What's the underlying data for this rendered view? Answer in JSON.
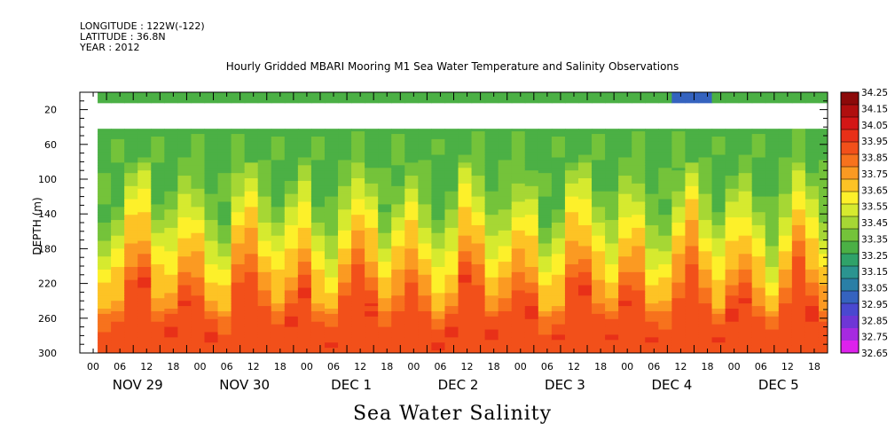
{
  "header": {
    "longitude": "LONGITUDE : 122W(-122)",
    "latitude": "LATITUDE : 36.8N",
    "year": "YEAR : 2012"
  },
  "chart_data": {
    "type": "heatmap",
    "title": "Hourly Gridded MBARI Mooring M1 Sea Water Temperature and Salinity Observations",
    "xlabel": "Sea Water Salinity",
    "ylabel": "DEPTH (m)",
    "y_ticks": [
      20,
      60,
      100,
      140,
      180,
      220,
      260,
      300
    ],
    "ylim": [
      0,
      300
    ],
    "y_inverted": true,
    "x_hour_ticks": [
      "00",
      "06",
      "12",
      "18",
      "00",
      "06",
      "12",
      "18",
      "00",
      "06",
      "12",
      "18",
      "00",
      "06",
      "12",
      "18",
      "00",
      "06",
      "12",
      "18",
      "00",
      "06",
      "12",
      "18",
      "00",
      "06",
      "12",
      "18"
    ],
    "x_day_labels": [
      "NOV 29",
      "NOV 30",
      "DEC  1",
      "DEC  2",
      "DEC  3",
      "DEC  4",
      "DEC  5"
    ],
    "days_shown": 7,
    "data_start_hour": 4,
    "missing_depth_range": [
      10,
      40
    ],
    "colorbar": {
      "levels": [
        34.25,
        34.15,
        34.05,
        33.95,
        33.85,
        33.75,
        33.65,
        33.55,
        33.45,
        33.35,
        33.25,
        33.15,
        33.05,
        32.95,
        32.85,
        32.75,
        32.65
      ],
      "colors": [
        "#8c0a0a",
        "#b00f0f",
        "#d41616",
        "#e83018",
        "#f2501a",
        "#f7721d",
        "#fb9a22",
        "#fdc325",
        "#fdf02a",
        "#d6ea2f",
        "#a6d734",
        "#74c33a",
        "#4bb045",
        "#2fa269",
        "#2b9490",
        "#2a7fa6",
        "#3563bf",
        "#4a48d0",
        "#6e36d6",
        "#a62ae0",
        "#dd22ec"
      ]
    },
    "salinity_summary": {
      "near_surface": 33.4,
      "depth_100m": 33.45,
      "depth_140m": 33.65,
      "depth_180m": 33.85,
      "depth_220m": 34.0,
      "depth_260m_max": 34.25,
      "min_observed": 33.05
    },
    "colors": {
      "background": "#ffffff",
      "missing": "#ffffff"
    }
  }
}
